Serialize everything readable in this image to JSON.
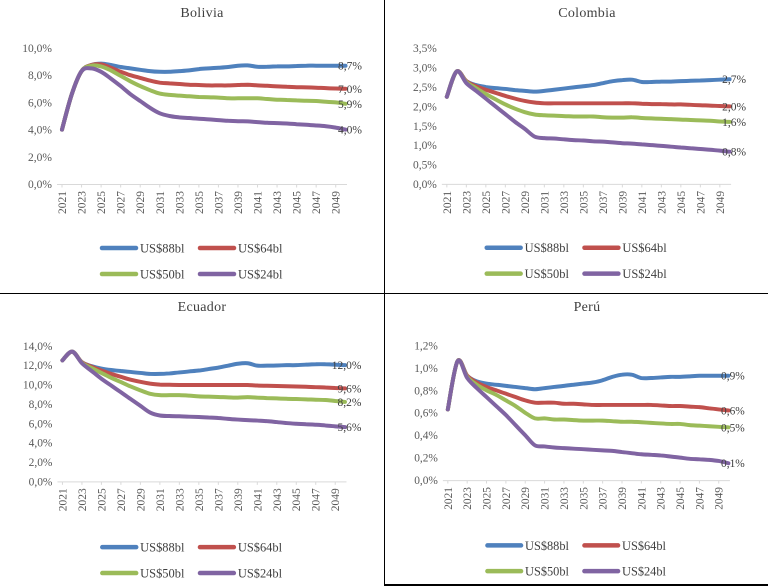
{
  "page": {
    "background": "#ffffff",
    "divider_color": "#000000",
    "axis_line_color": "#d9d9d9",
    "axis_text_color": "#595959",
    "label_text_color": "#404040"
  },
  "legend_labels": [
    "US$88bl",
    "US$64bl",
    "US$50bl",
    "US$24bl"
  ],
  "chart_data": [
    {
      "type": "line",
      "title": "Bolivia",
      "ymax": 10,
      "ylim": [
        0,
        10
      ],
      "ytick_labels": [
        "10,0%",
        "8,0%",
        "6,0%",
        "4,0%",
        "2,0%",
        "0,0%"
      ],
      "xtick_labels": [
        "2021",
        "2023",
        "2025",
        "2027",
        "2029",
        "2031",
        "2033",
        "2035",
        "2037",
        "2039",
        "2041",
        "2043",
        "2045",
        "2047",
        "2049"
      ],
      "x": [
        2021,
        2022,
        2023,
        2024,
        2025,
        2026,
        2027,
        2028,
        2029,
        2030,
        2031,
        2032,
        2033,
        2034,
        2035,
        2036,
        2037,
        2038,
        2039,
        2040,
        2041,
        2042,
        2043,
        2044,
        2045,
        2046,
        2047,
        2048,
        2049,
        2050
      ],
      "legend_position": "bottom",
      "grid": false,
      "series": [
        {
          "name": "US$88bl",
          "color": "#4F81BD",
          "end_label": "8,7%",
          "values": [
            4.0,
            6.6,
            8.3,
            8.75,
            8.85,
            8.75,
            8.6,
            8.5,
            8.4,
            8.3,
            8.25,
            8.25,
            8.3,
            8.35,
            8.45,
            8.5,
            8.55,
            8.6,
            8.7,
            8.72,
            8.62,
            8.62,
            8.65,
            8.65,
            8.68,
            8.7,
            8.7,
            8.7,
            8.7,
            8.7
          ]
        },
        {
          "name": "US$64bl",
          "color": "#C0504D",
          "end_label": "7,0%",
          "values": [
            4.0,
            6.6,
            8.3,
            8.75,
            8.8,
            8.55,
            8.25,
            8.0,
            7.8,
            7.6,
            7.45,
            7.4,
            7.35,
            7.3,
            7.28,
            7.25,
            7.25,
            7.25,
            7.28,
            7.3,
            7.25,
            7.22,
            7.18,
            7.15,
            7.12,
            7.1,
            7.08,
            7.05,
            7.02,
            7.0
          ]
        },
        {
          "name": "US$50bl",
          "color": "#9BBB59",
          "end_label": "5,9%",
          "values": [
            4.0,
            6.6,
            8.3,
            8.7,
            8.65,
            8.35,
            7.95,
            7.55,
            7.2,
            6.9,
            6.65,
            6.55,
            6.5,
            6.45,
            6.4,
            6.38,
            6.35,
            6.3,
            6.3,
            6.3,
            6.3,
            6.25,
            6.2,
            6.18,
            6.15,
            6.12,
            6.1,
            6.05,
            6.0,
            5.9
          ]
        },
        {
          "name": "US$24bl",
          "color": "#8064A2",
          "end_label": "4,0%",
          "values": [
            4.0,
            6.6,
            8.3,
            8.5,
            8.25,
            7.75,
            7.2,
            6.6,
            6.1,
            5.6,
            5.2,
            5.0,
            4.9,
            4.85,
            4.8,
            4.75,
            4.7,
            4.65,
            4.62,
            4.6,
            4.55,
            4.5,
            4.48,
            4.45,
            4.4,
            4.35,
            4.3,
            4.25,
            4.15,
            4.0
          ]
        }
      ]
    },
    {
      "type": "line",
      "title": "Colombia",
      "ymax": 3.5,
      "ylim": [
        0,
        3.5
      ],
      "ytick_labels": [
        "3,5%",
        "3,0%",
        "2,5%",
        "2,0%",
        "1,5%",
        "1,0%",
        "0,5%",
        "0,0%"
      ],
      "xtick_labels": [
        "2021",
        "2023",
        "2025",
        "2027",
        "2029",
        "2031",
        "2033",
        "2035",
        "2037",
        "2039",
        "2041",
        "2043",
        "2045",
        "2047",
        "2049"
      ],
      "x": [
        2021,
        2022,
        2023,
        2024,
        2025,
        2026,
        2027,
        2028,
        2029,
        2030,
        2031,
        2032,
        2033,
        2034,
        2035,
        2036,
        2037,
        2038,
        2039,
        2040,
        2041,
        2042,
        2043,
        2044,
        2045,
        2046,
        2047,
        2048,
        2049,
        2050
      ],
      "legend_position": "bottom",
      "grid": false,
      "series": [
        {
          "name": "US$88bl",
          "color": "#4F81BD",
          "end_label": "2,7%",
          "values": [
            2.25,
            2.9,
            2.65,
            2.55,
            2.5,
            2.47,
            2.45,
            2.42,
            2.4,
            2.38,
            2.4,
            2.43,
            2.46,
            2.49,
            2.52,
            2.55,
            2.6,
            2.65,
            2.68,
            2.69,
            2.63,
            2.63,
            2.64,
            2.64,
            2.65,
            2.66,
            2.67,
            2.68,
            2.69,
            2.7
          ]
        },
        {
          "name": "US$64bl",
          "color": "#C0504D",
          "end_label": "2,0%",
          "values": [
            2.25,
            2.9,
            2.65,
            2.52,
            2.43,
            2.35,
            2.27,
            2.2,
            2.14,
            2.1,
            2.08,
            2.08,
            2.08,
            2.08,
            2.08,
            2.08,
            2.08,
            2.08,
            2.08,
            2.08,
            2.07,
            2.06,
            2.06,
            2.05,
            2.05,
            2.04,
            2.03,
            2.02,
            2.01,
            2.0
          ]
        },
        {
          "name": "US$50bl",
          "color": "#9BBB59",
          "end_label": "1,6%",
          "values": [
            2.25,
            2.9,
            2.63,
            2.47,
            2.32,
            2.18,
            2.05,
            1.94,
            1.85,
            1.79,
            1.77,
            1.76,
            1.75,
            1.74,
            1.74,
            1.74,
            1.72,
            1.71,
            1.71,
            1.72,
            1.7,
            1.69,
            1.68,
            1.67,
            1.66,
            1.65,
            1.64,
            1.63,
            1.61,
            1.6
          ]
        },
        {
          "name": "US$24bl",
          "color": "#8064A2",
          "end_label": "0,8%",
          "values": [
            2.25,
            2.9,
            2.6,
            2.4,
            2.2,
            2.0,
            1.8,
            1.6,
            1.42,
            1.22,
            1.18,
            1.17,
            1.15,
            1.13,
            1.12,
            1.1,
            1.09,
            1.07,
            1.05,
            1.04,
            1.02,
            1.0,
            0.98,
            0.96,
            0.94,
            0.92,
            0.9,
            0.88,
            0.86,
            0.83
          ]
        }
      ]
    },
    {
      "type": "line",
      "title": "Ecuador",
      "ymax": 14,
      "ylim": [
        0,
        14
      ],
      "ytick_labels": [
        "14,0%",
        "12,0%",
        "10,0%",
        "8,0%",
        "6,0%",
        "4,0%",
        "2,0%",
        "0,0%"
      ],
      "xtick_labels": [
        "2021",
        "2023",
        "2025",
        "2027",
        "2029",
        "2031",
        "2033",
        "2035",
        "2037",
        "2039",
        "2041",
        "2043",
        "2045",
        "2047",
        "2049"
      ],
      "x": [
        2021,
        2022,
        2023,
        2024,
        2025,
        2026,
        2027,
        2028,
        2029,
        2030,
        2031,
        2032,
        2033,
        2034,
        2035,
        2036,
        2037,
        2038,
        2039,
        2040,
        2041,
        2042,
        2043,
        2044,
        2045,
        2046,
        2047,
        2048,
        2049,
        2050
      ],
      "legend_position": "bottom",
      "grid": false,
      "series": [
        {
          "name": "US$88bl",
          "color": "#4F81BD",
          "end_label": "12,0%",
          "values": [
            12.5,
            13.4,
            12.3,
            11.9,
            11.65,
            11.5,
            11.4,
            11.3,
            11.2,
            11.1,
            11.1,
            11.15,
            11.25,
            11.35,
            11.45,
            11.6,
            11.75,
            11.95,
            12.15,
            12.2,
            11.95,
            11.95,
            11.97,
            12.0,
            12.0,
            12.05,
            12.1,
            12.1,
            12.05,
            12.0
          ]
        },
        {
          "name": "US$64bl",
          "color": "#C0504D",
          "end_label": "9,6%",
          "values": [
            12.5,
            13.4,
            12.3,
            11.85,
            11.45,
            11.1,
            10.8,
            10.5,
            10.28,
            10.1,
            10.0,
            9.97,
            9.95,
            9.95,
            9.95,
            9.95,
            9.95,
            9.95,
            9.95,
            9.95,
            9.9,
            9.87,
            9.85,
            9.82,
            9.8,
            9.77,
            9.73,
            9.7,
            9.65,
            9.6
          ]
        },
        {
          "name": "US$50bl",
          "color": "#9BBB59",
          "end_label": "8,2%",
          "values": [
            12.5,
            13.4,
            12.25,
            11.7,
            11.2,
            10.7,
            10.25,
            9.8,
            9.4,
            9.05,
            8.9,
            8.9,
            8.9,
            8.85,
            8.78,
            8.75,
            8.72,
            8.68,
            8.65,
            8.7,
            8.65,
            8.6,
            8.57,
            8.53,
            8.5,
            8.47,
            8.43,
            8.4,
            8.3,
            8.2
          ]
        },
        {
          "name": "US$24bl",
          "color": "#8064A2",
          "end_label": "5,6%",
          "values": [
            12.5,
            13.4,
            12.2,
            11.4,
            10.6,
            9.9,
            9.2,
            8.5,
            7.8,
            7.1,
            6.8,
            6.75,
            6.72,
            6.68,
            6.65,
            6.6,
            6.55,
            6.45,
            6.38,
            6.32,
            6.28,
            6.22,
            6.12,
            6.02,
            5.95,
            5.9,
            5.85,
            5.78,
            5.68,
            5.6
          ]
        }
      ]
    },
    {
      "type": "line",
      "title": "Perú",
      "ymax": 1.2,
      "ylim": [
        0,
        1.2
      ],
      "ytick_labels": [
        "1,2%",
        "1,0%",
        "0,8%",
        "0,6%",
        "0,4%",
        "0,2%",
        "0,0%"
      ],
      "xtick_labels": [
        "2021",
        "2023",
        "2025",
        "2027",
        "2029",
        "2031",
        "2033",
        "2035",
        "2037",
        "2039",
        "2041",
        "2043",
        "2045",
        "2047",
        "2049"
      ],
      "x": [
        2021,
        2022,
        2023,
        2024,
        2025,
        2026,
        2027,
        2028,
        2029,
        2030,
        2031,
        2032,
        2033,
        2034,
        2035,
        2036,
        2037,
        2038,
        2039,
        2040,
        2041,
        2042,
        2043,
        2044,
        2045,
        2046,
        2047,
        2048,
        2049,
        2050
      ],
      "legend_position": "bottom",
      "grid": false,
      "series": [
        {
          "name": "US$88bl",
          "color": "#4F81BD",
          "end_label": "0,9%",
          "values": [
            0.63,
            1.06,
            0.93,
            0.88,
            0.86,
            0.85,
            0.84,
            0.83,
            0.82,
            0.81,
            0.82,
            0.83,
            0.84,
            0.85,
            0.86,
            0.87,
            0.89,
            0.92,
            0.94,
            0.94,
            0.91,
            0.91,
            0.915,
            0.92,
            0.92,
            0.925,
            0.93,
            0.93,
            0.93,
            0.93
          ]
        },
        {
          "name": "US$64bl",
          "color": "#C0504D",
          "end_label": "0,6%",
          "values": [
            0.63,
            1.06,
            0.93,
            0.87,
            0.83,
            0.8,
            0.77,
            0.74,
            0.71,
            0.69,
            0.69,
            0.69,
            0.68,
            0.68,
            0.675,
            0.67,
            0.67,
            0.67,
            0.67,
            0.67,
            0.67,
            0.67,
            0.665,
            0.66,
            0.66,
            0.655,
            0.65,
            0.64,
            0.63,
            0.62
          ]
        },
        {
          "name": "US$50bl",
          "color": "#9BBB59",
          "end_label": "0,5%",
          "values": [
            0.63,
            1.06,
            0.92,
            0.85,
            0.8,
            0.76,
            0.71,
            0.66,
            0.6,
            0.55,
            0.55,
            0.54,
            0.54,
            0.535,
            0.53,
            0.53,
            0.53,
            0.525,
            0.52,
            0.52,
            0.515,
            0.51,
            0.505,
            0.5,
            0.5,
            0.49,
            0.485,
            0.48,
            0.475,
            0.47
          ]
        },
        {
          "name": "US$24bl",
          "color": "#8064A2",
          "end_label": "0,1%",
          "values": [
            0.63,
            1.06,
            0.91,
            0.82,
            0.74,
            0.66,
            0.58,
            0.49,
            0.4,
            0.31,
            0.3,
            0.29,
            0.285,
            0.28,
            0.275,
            0.27,
            0.265,
            0.26,
            0.25,
            0.24,
            0.23,
            0.225,
            0.22,
            0.21,
            0.2,
            0.19,
            0.185,
            0.18,
            0.17,
            0.15
          ]
        }
      ]
    }
  ]
}
